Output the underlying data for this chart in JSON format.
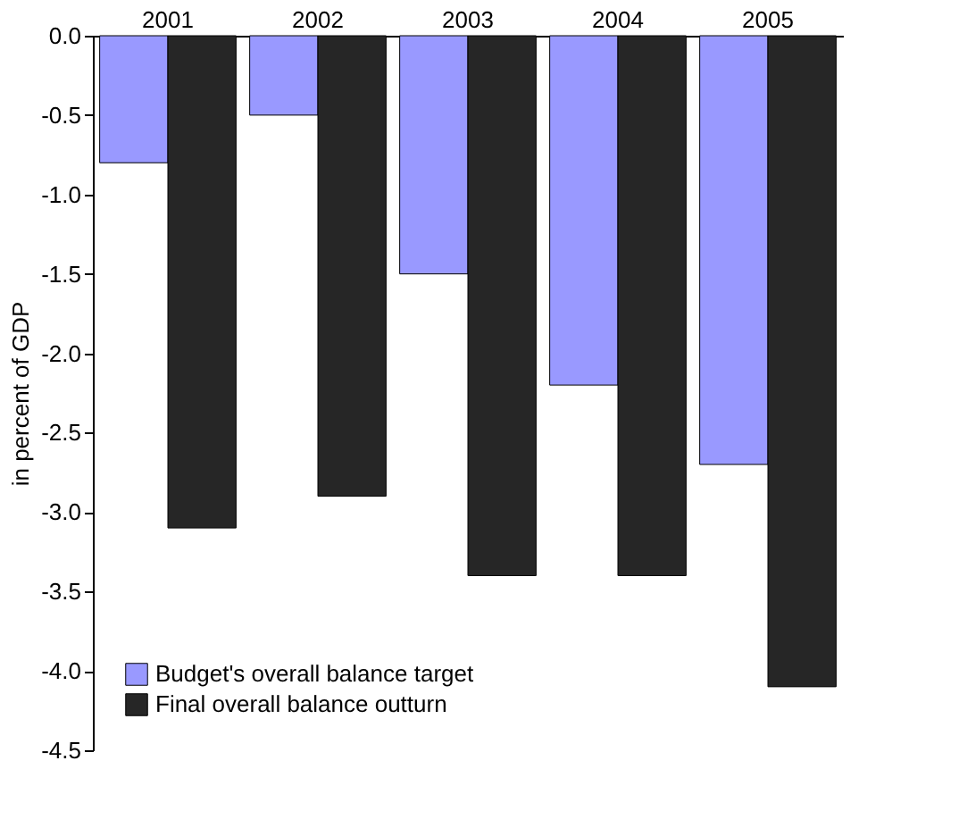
{
  "chart_data": {
    "type": "bar",
    "ylabel": "in percent of GDP",
    "categories": [
      "2001",
      "2002",
      "2003",
      "2004",
      "2005"
    ],
    "series": [
      {
        "name": "Budget's overall balance target",
        "color": "#9999ff",
        "values": [
          -0.8,
          -0.5,
          -1.5,
          -2.2,
          -2.7
        ]
      },
      {
        "name": "Final overall balance outturn",
        "color": "#262626",
        "values": [
          -3.1,
          -2.9,
          -3.4,
          -3.4,
          -4.1
        ]
      }
    ],
    "ylim": [
      -4.5,
      0
    ],
    "yticks": [
      {
        "value": 0,
        "label": "0.0"
      },
      -0.5,
      {
        "value": -1,
        "label": "-1.0"
      },
      -1.5,
      {
        "value": -2,
        "label": "-2.0"
      },
      -2.5,
      {
        "value": -3,
        "label": "-3.0"
      },
      -3.5,
      {
        "value": -4,
        "label": "-4.0"
      },
      -4.5
    ],
    "grid": false,
    "legend": "bottom left"
  }
}
